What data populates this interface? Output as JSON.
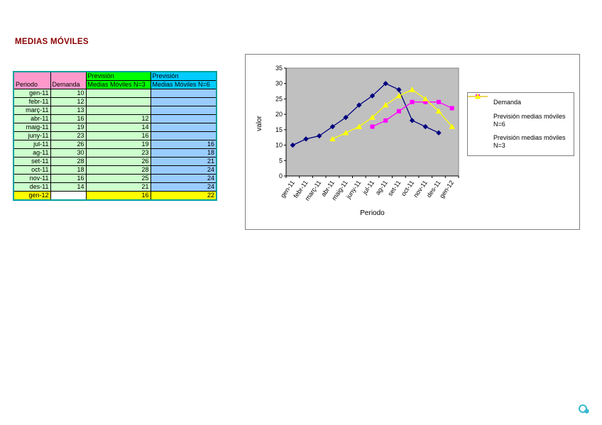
{
  "page": {
    "title": "MEDIAS MÓVILES"
  },
  "icons": {
    "footer_logo": "swirl-logo-icon"
  },
  "table": {
    "header": {
      "periodo": "Periodo",
      "demanda": "Demanda",
      "n3_top": "Previsión",
      "n3_bottom": "Medias Móviles N=3",
      "n6_top": "Previsión",
      "n6_bottom": "Medias Móviles N=6"
    },
    "rows": [
      {
        "periodo": "gen-11",
        "demanda": "10",
        "n3": "",
        "n6": ""
      },
      {
        "periodo": "febr-11",
        "demanda": "12",
        "n3": "",
        "n6": ""
      },
      {
        "periodo": "març-11",
        "demanda": "13",
        "n3": "",
        "n6": ""
      },
      {
        "periodo": "abr-11",
        "demanda": "16",
        "n3": "12",
        "n6": ""
      },
      {
        "periodo": "maig-11",
        "demanda": "19",
        "n3": "14",
        "n6": ""
      },
      {
        "periodo": "juny-11",
        "demanda": "23",
        "n3": "16",
        "n6": ""
      },
      {
        "periodo": "jul-11",
        "demanda": "26",
        "n3": "19",
        "n6": "16"
      },
      {
        "periodo": "ag-11",
        "demanda": "30",
        "n3": "23",
        "n6": "18"
      },
      {
        "periodo": "set-11",
        "demanda": "28",
        "n3": "26",
        "n6": "21"
      },
      {
        "periodo": "oct-11",
        "demanda": "18",
        "n3": "28",
        "n6": "24"
      },
      {
        "periodo": "nov-11",
        "demanda": "16",
        "n3": "25",
        "n6": "24"
      },
      {
        "periodo": "des-11",
        "demanda": "14",
        "n3": "21",
        "n6": "24"
      },
      {
        "periodo": "gen-12",
        "demanda": "",
        "n3": "16",
        "n6": "22",
        "highlight": true
      }
    ]
  },
  "chart_data": {
    "type": "line",
    "title": "",
    "xlabel": "Periodo",
    "ylabel": "valor",
    "ylim": [
      0,
      35
    ],
    "ytick_step": 5,
    "plot_background": "#C0C0C0",
    "grid": false,
    "legend_position": "right",
    "categories": [
      "gen-11",
      "febr-11",
      "març-11",
      "abr-11",
      "maig-11",
      "juny-11",
      "jul-11",
      "ag-11",
      "set-11",
      "oct-11",
      "nov-11",
      "des-11",
      "gen-12"
    ],
    "series": [
      {
        "name": "Demanda",
        "marker": "diamond",
        "color": "#000080",
        "values": [
          10,
          12,
          13,
          16,
          19,
          23,
          26,
          30,
          28,
          18,
          16,
          14,
          null
        ]
      },
      {
        "name": "Previsión medias móviles N=6",
        "marker": "square",
        "color": "#FF00FF",
        "values": [
          null,
          null,
          null,
          null,
          null,
          null,
          16,
          18,
          21,
          24,
          24,
          24,
          22
        ]
      },
      {
        "name": "Previsión medias móviles N=3",
        "marker": "triangle",
        "color": "#FFFF00",
        "values": [
          null,
          null,
          null,
          12,
          14,
          16,
          19,
          23,
          26,
          28,
          25,
          21,
          16
        ]
      }
    ]
  },
  "colors": {
    "title_text": "#8B0000",
    "table_border": "#00A09B",
    "header_pink": "#FF99CC",
    "header_green": "#00FF00",
    "header_cyan": "#00CCFF",
    "cell_light_green": "#CCFFCC",
    "cell_light_blue": "#99CCFF",
    "cell_yellow": "#FFFF00",
    "footer_logo": "#35B9CF"
  }
}
